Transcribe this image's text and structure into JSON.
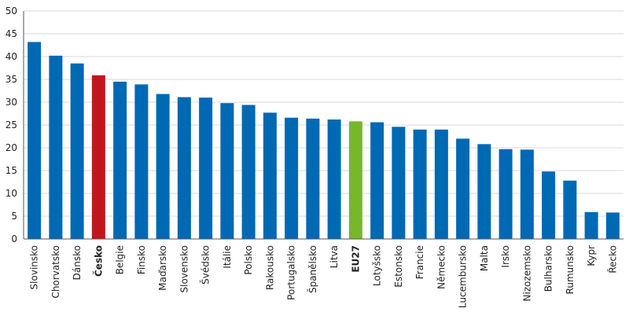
{
  "chart_data": {
    "type": "bar",
    "ylim": [
      0,
      50
    ],
    "yticks": [
      "0",
      "5",
      "10",
      "15",
      "20",
      "25",
      "30",
      "35",
      "40",
      "45",
      "50"
    ],
    "grid": true,
    "categories": [
      "Slovinsko",
      "Chorvatsko",
      "Dánsko",
      "Česko",
      "Belgie",
      "Finsko",
      "Maďarsko",
      "Slovensko",
      "Švédsko",
      "Itálie",
      "Polsko",
      "Rakousko",
      "Portugalsko",
      "Španělsko",
      "Litva",
      "EU27",
      "Lotyšsko",
      "Estonsko",
      "Francie",
      "Německo",
      "Lucembursko",
      "Malta",
      "Irsko",
      "Nizozemsko",
      "Bulharsko",
      "Rumunsko",
      "Kypr",
      "Řecko"
    ],
    "values": [
      43.2,
      40.2,
      38.5,
      35.9,
      34.5,
      33.9,
      31.8,
      31.1,
      31.0,
      29.8,
      29.4,
      27.7,
      26.6,
      26.4,
      26.2,
      25.8,
      25.6,
      24.6,
      24.0,
      24.0,
      22.0,
      20.8,
      19.7,
      19.6,
      14.8,
      12.8,
      5.9,
      5.8
    ],
    "highlight": {
      "Česko": "#c0171d",
      "EU27": "#78b72a"
    },
    "bold_labels": [
      "Česko",
      "EU27"
    ]
  },
  "colors": {
    "bar": "#0069b4",
    "cesko": "#c0171d",
    "eu27": "#78b72a",
    "grid": "#d9d9d9",
    "axis": "#555555"
  }
}
